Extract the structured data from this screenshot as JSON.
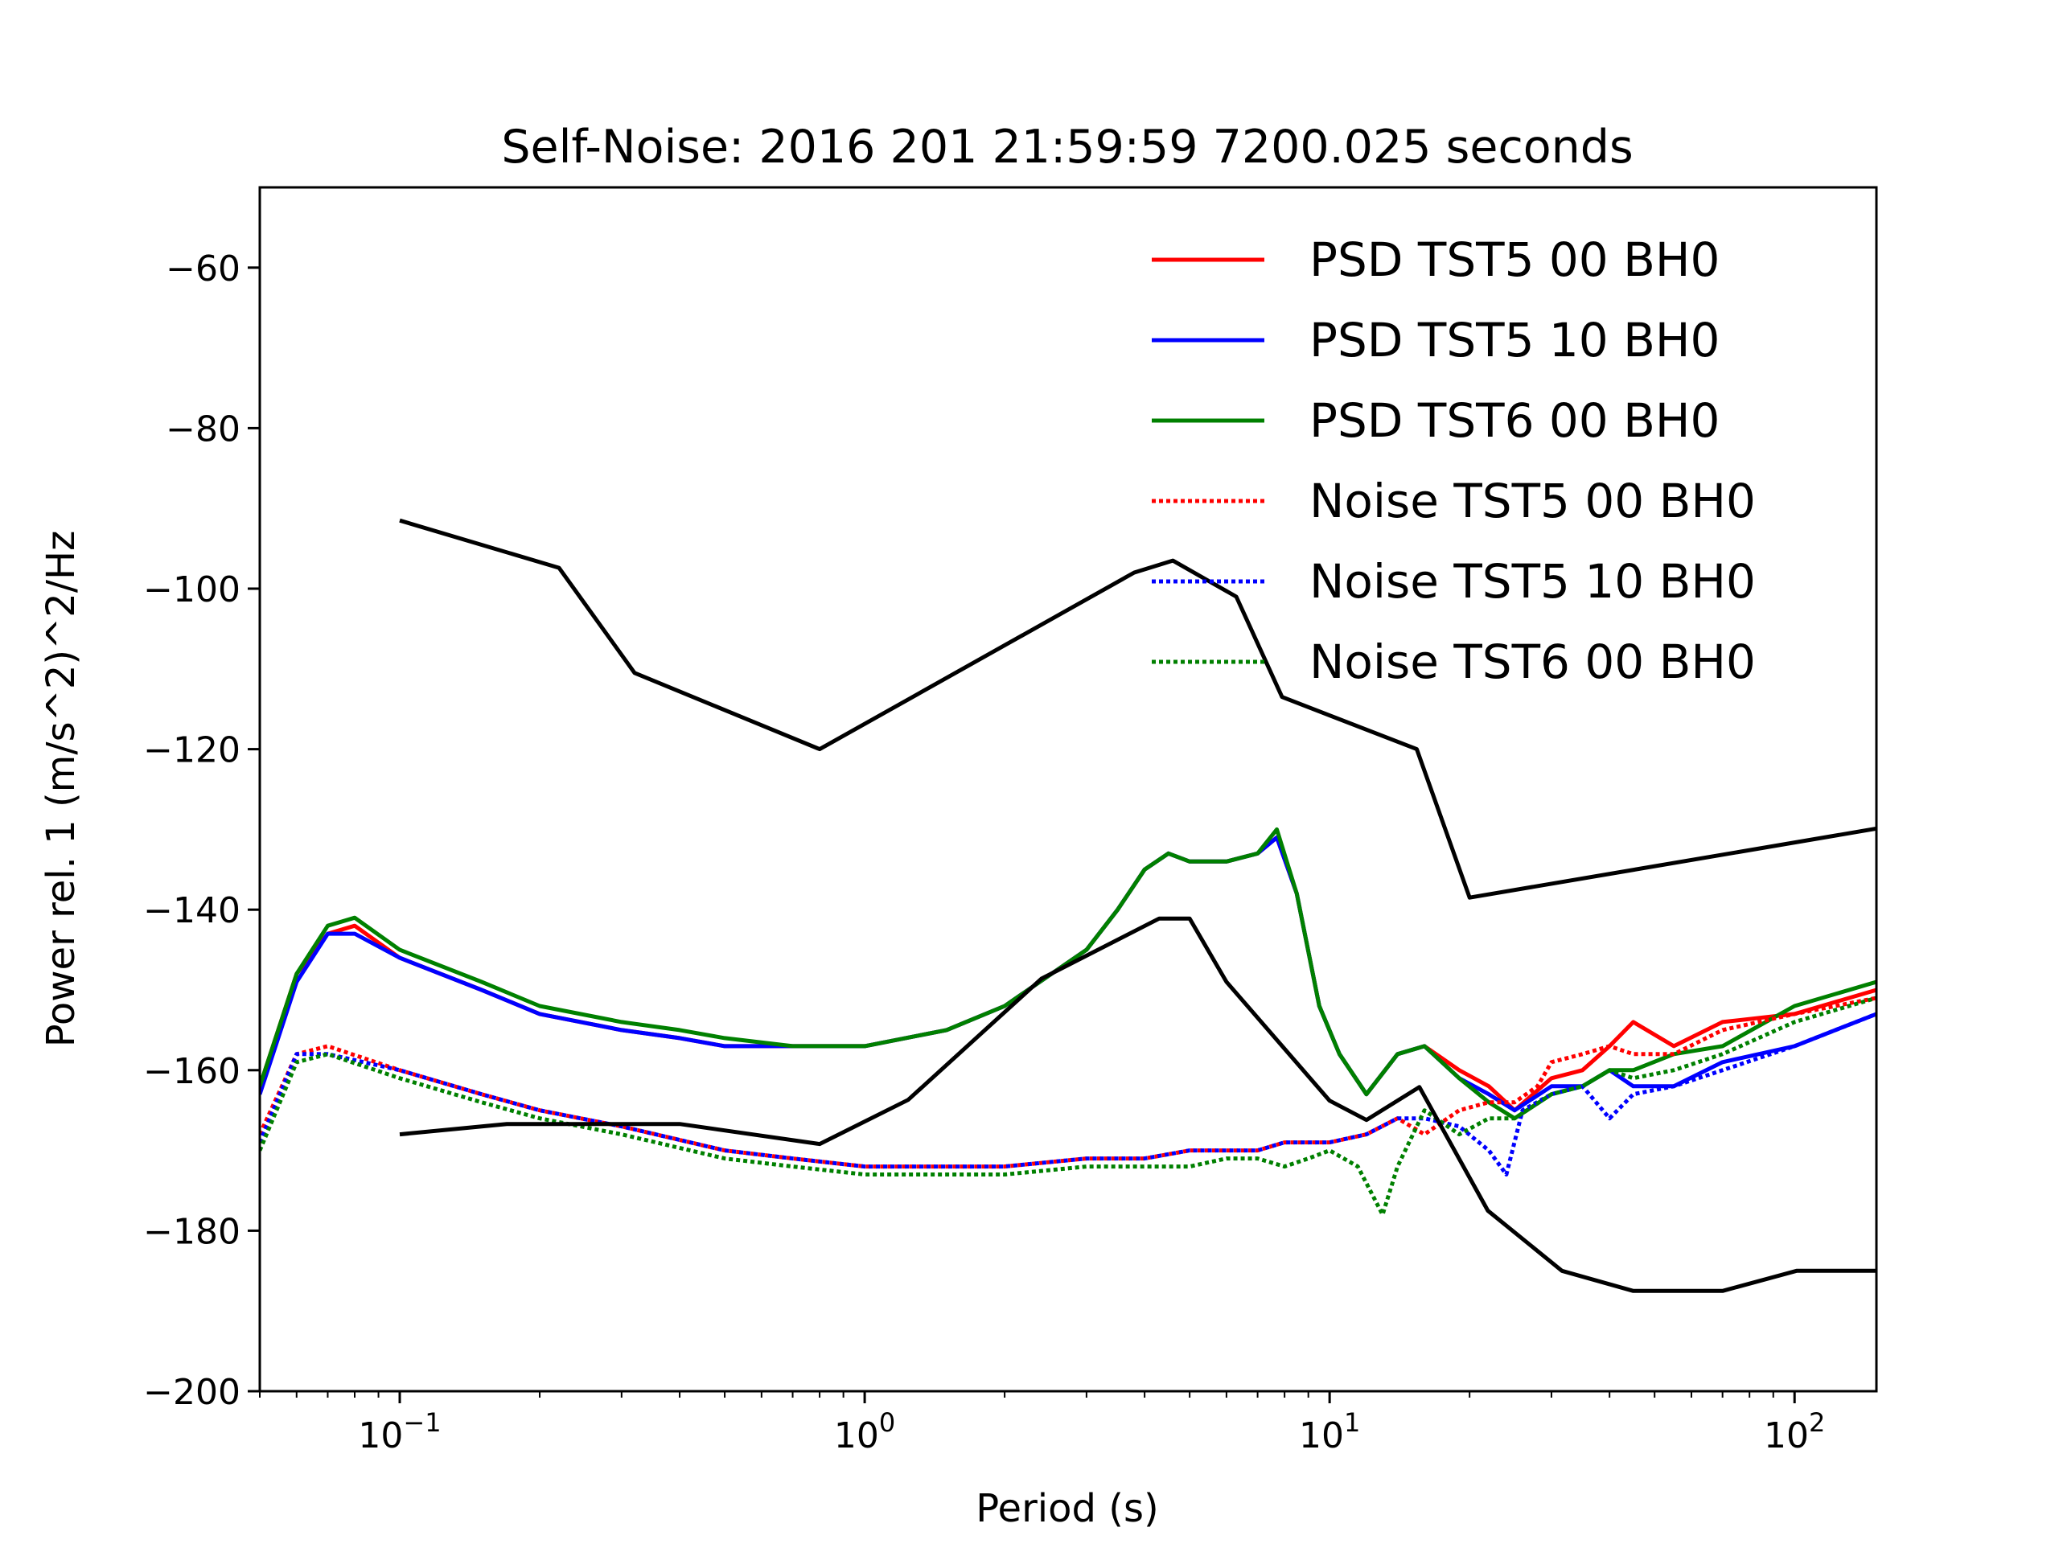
{
  "chart_data": {
    "type": "line",
    "title": "Self-Noise: 2016 201 21:59:59 7200.025 seconds",
    "xlabel": "Period (s)",
    "ylabel": "Power rel. 1 (m/s^2)^2/Hz",
    "xscale": "log",
    "xlim": [
      0.05,
      150
    ],
    "ylim": [
      -200,
      -50
    ],
    "yticks": [
      -200,
      -180,
      -160,
      -140,
      -120,
      -100,
      -80,
      -60
    ],
    "yticklabels": [
      "−200",
      "−180",
      "−160",
      "−140",
      "−120",
      "−100",
      "−80",
      "−60"
    ],
    "xticks": [
      {
        "base": "10",
        "exp": "−1",
        "value": 0.1
      },
      {
        "base": "10",
        "exp": "0",
        "value": 1
      },
      {
        "base": "10",
        "exp": "1",
        "value": 10
      },
      {
        "base": "10",
        "exp": "2",
        "value": 100
      }
    ],
    "grid": false,
    "legend_position": "top-right",
    "colors": {
      "red": "#ff0000",
      "blue": "#0000ff",
      "green": "#008000",
      "black": "#000000"
    },
    "series": [
      {
        "name": "PSD TST5 00 BH0",
        "color": "#ff0000",
        "style": "solid",
        "x": [
          0.05,
          0.06,
          0.07,
          0.08,
          0.1,
          0.15,
          0.2,
          0.3,
          0.4,
          0.5,
          0.7,
          1.0,
          1.5,
          2.0,
          3.0,
          3.5,
          4.0,
          4.5,
          5.0,
          6.0,
          7.0,
          7.7,
          8.5,
          9.5,
          10.5,
          12,
          14,
          16,
          19,
          22,
          25,
          30,
          35,
          40,
          45,
          55,
          70,
          100,
          150
        ],
        "y": [
          -162,
          -148,
          -143,
          -142,
          -146,
          -150,
          -153,
          -155,
          -156,
          -157,
          -157,
          -157,
          -155,
          -152,
          -145,
          -140,
          -135,
          -133,
          -134,
          -134,
          -133,
          -131,
          -138,
          -152,
          -158,
          -163,
          -158,
          -157,
          -160,
          -162,
          -165,
          -161,
          -160,
          -157,
          -154,
          -157,
          -154,
          -153,
          -150
        ]
      },
      {
        "name": "PSD TST5 10 BH0",
        "color": "#0000ff",
        "style": "solid",
        "x": [
          0.05,
          0.06,
          0.07,
          0.08,
          0.1,
          0.15,
          0.2,
          0.3,
          0.4,
          0.5,
          0.7,
          1.0,
          1.5,
          2.0,
          3.0,
          3.5,
          4.0,
          4.5,
          5.0,
          6.0,
          7.0,
          7.7,
          8.5,
          9.5,
          10.5,
          12,
          14,
          16,
          19,
          22,
          25,
          30,
          35,
          40,
          45,
          55,
          70,
          100,
          150
        ],
        "y": [
          -163,
          -149,
          -143,
          -143,
          -146,
          -150,
          -153,
          -155,
          -156,
          -157,
          -157,
          -157,
          -155,
          -152,
          -145,
          -140,
          -135,
          -133,
          -134,
          -134,
          -133,
          -131,
          -138,
          -152,
          -158,
          -163,
          -158,
          -157,
          -161,
          -163,
          -165,
          -162,
          -162,
          -160,
          -162,
          -162,
          -159,
          -157,
          -153
        ]
      },
      {
        "name": "PSD TST6 00 BH0",
        "color": "#008000",
        "style": "solid",
        "x": [
          0.05,
          0.06,
          0.07,
          0.08,
          0.1,
          0.15,
          0.2,
          0.3,
          0.4,
          0.5,
          0.7,
          1.0,
          1.5,
          2.0,
          3.0,
          3.5,
          4.0,
          4.5,
          5.0,
          6.0,
          7.0,
          7.7,
          8.5,
          9.5,
          10.5,
          12,
          14,
          16,
          19,
          22,
          25,
          30,
          35,
          40,
          45,
          55,
          70,
          100,
          150
        ],
        "y": [
          -162,
          -148,
          -142,
          -141,
          -145,
          -149,
          -152,
          -154,
          -155,
          -156,
          -157,
          -157,
          -155,
          -152,
          -145,
          -140,
          -135,
          -133,
          -134,
          -134,
          -133,
          -130,
          -138,
          -152,
          -158,
          -163,
          -158,
          -157,
          -161,
          -164,
          -166,
          -163,
          -162,
          -160,
          -160,
          -158,
          -157,
          -152,
          -149
        ]
      },
      {
        "name": "Noise TST5 00 BH0",
        "color": "#ff0000",
        "style": "dotted",
        "x": [
          0.05,
          0.06,
          0.07,
          0.1,
          0.15,
          0.2,
          0.3,
          0.5,
          0.7,
          1.0,
          1.5,
          2.0,
          3.0,
          4.0,
          5.0,
          6.0,
          7.0,
          8.0,
          10.0,
          12,
          14,
          16,
          19,
          22,
          25,
          28,
          30,
          35,
          40,
          45,
          55,
          70,
          100,
          150
        ],
        "y": [
          -168,
          -158,
          -157,
          -160,
          -163,
          -165,
          -167,
          -170,
          -171,
          -172,
          -172,
          -172,
          -171,
          -171,
          -170,
          -170,
          -170,
          -169,
          -169,
          -168,
          -166,
          -168,
          -165,
          -164,
          -164,
          -162,
          -159,
          -158,
          -157,
          -158,
          -158,
          -155,
          -153,
          -151
        ]
      },
      {
        "name": "Noise TST5 10 BH0",
        "color": "#0000ff",
        "style": "dotted",
        "x": [
          0.05,
          0.06,
          0.07,
          0.1,
          0.15,
          0.2,
          0.3,
          0.5,
          0.7,
          1.0,
          1.5,
          2.0,
          3.0,
          4.0,
          5.0,
          6.0,
          7.0,
          8.0,
          10.0,
          12,
          14,
          16,
          19,
          22,
          24,
          26,
          30,
          35,
          40,
          45,
          55,
          70,
          100,
          150
        ],
        "y": [
          -169,
          -158,
          -158,
          -160,
          -163,
          -165,
          -167,
          -170,
          -171,
          -172,
          -172,
          -172,
          -171,
          -171,
          -170,
          -170,
          -170,
          -169,
          -169,
          -168,
          -166,
          -166,
          -167,
          -170,
          -173,
          -165,
          -163,
          -162,
          -166,
          -163,
          -162,
          -160,
          -157,
          -153
        ]
      },
      {
        "name": "Noise TST6 00 BH0",
        "color": "#008000",
        "style": "dotted",
        "x": [
          0.05,
          0.06,
          0.07,
          0.1,
          0.15,
          0.2,
          0.3,
          0.5,
          0.7,
          1.0,
          1.5,
          2.0,
          3.0,
          4.0,
          5.0,
          6.0,
          7.0,
          8.0,
          9.0,
          10.0,
          11.5,
          13,
          14,
          16,
          19,
          22,
          25,
          30,
          35,
          40,
          45,
          55,
          70,
          100,
          150
        ],
        "y": [
          -170,
          -159,
          -158,
          -161,
          -164,
          -166,
          -168,
          -171,
          -172,
          -173,
          -173,
          -173,
          -172,
          -172,
          -172,
          -171,
          -171,
          -172,
          -171,
          -170,
          -172,
          -178,
          -172,
          -165,
          -168,
          -166,
          -166,
          -163,
          -162,
          -160,
          -161,
          -160,
          -158,
          -154,
          -151
        ]
      },
      {
        "name": "",
        "color": "#000000",
        "style": "solid",
        "x": [
          0.1,
          0.22,
          0.32,
          0.8,
          3.8,
          4.6,
          6.3,
          7.9,
          15.4,
          20,
          150
        ],
        "y": [
          -91.5,
          -97.4,
          -110.5,
          -120,
          -98,
          -96.5,
          -101,
          -113.5,
          -120,
          -138.5,
          -129.9
        ]
      },
      {
        "name": "",
        "color": "#000000",
        "style": "solid",
        "x": [
          0.1,
          0.17,
          0.4,
          0.8,
          1.24,
          2.4,
          4.3,
          5.0,
          6.0,
          10,
          12,
          15.6,
          21.9,
          31.6,
          45,
          70,
          101,
          150
        ],
        "y": [
          -168,
          -166.7,
          -166.7,
          -169.2,
          -163.7,
          -148.6,
          -141.1,
          -141.1,
          -149,
          -163.8,
          -166.2,
          -162.1,
          -177.5,
          -185,
          -187.5,
          -187.5,
          -185,
          -185
        ]
      }
    ]
  }
}
